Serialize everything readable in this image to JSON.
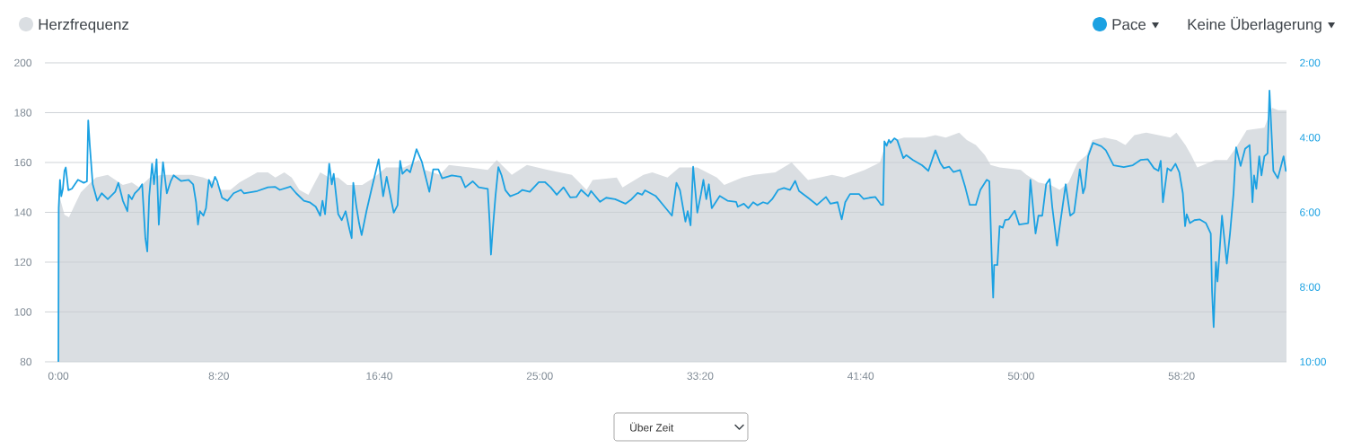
{
  "chart_data": {
    "type": "area",
    "series": [
      {
        "name": "Herzfrequenz",
        "color": "#dadee2",
        "x": [
          0,
          19,
          33,
          51,
          70,
          93,
          117,
          154,
          201,
          229,
          252,
          285,
          322,
          359,
          415,
          452,
          490,
          508,
          536,
          564,
          620,
          653,
          676,
          704,
          727,
          751,
          779,
          816,
          844,
          872,
          900,
          947,
          984,
          1021,
          1077,
          1124,
          1142,
          1189,
          1217,
          1282,
          1338,
          1366,
          1413,
          1460,
          1525,
          1600,
          1646,
          1665,
          1740,
          1758,
          1823,
          1851,
          1898,
          1935,
          1991,
          2052,
          2075,
          2131,
          2168,
          2234,
          2285,
          2336,
          2411,
          2448,
          2513,
          2560,
          2579,
          2635,
          2700,
          2733,
          2765,
          2807,
          2831,
          2859,
          2887,
          2905,
          2933,
          2999,
          3017,
          3054,
          3092,
          3120,
          3148,
          3176,
          3204,
          3222,
          3260,
          3297,
          3325,
          3353,
          3390,
          3428,
          3465,
          3484,
          3512,
          3530,
          3549,
          3605,
          3642,
          3670,
          3703,
          3758,
          3782,
          3801,
          3827
        ],
        "values": [
          148,
          139,
          138,
          143,
          148,
          151,
          154,
          155,
          151,
          152,
          150,
          154,
          155,
          155,
          155,
          154,
          152,
          149,
          149,
          152,
          156,
          156,
          154,
          156,
          154,
          149,
          147,
          156,
          154,
          154,
          151,
          151,
          154,
          158,
          158,
          161,
          157,
          155,
          159,
          158,
          157,
          161,
          155,
          159,
          157,
          155,
          149,
          153,
          154,
          150,
          155,
          156,
          154,
          158,
          158,
          154,
          151,
          154,
          155,
          156,
          160,
          153,
          155,
          154,
          157,
          160,
          168,
          170,
          170,
          171,
          170,
          172,
          169,
          167,
          163,
          159,
          158,
          157,
          155,
          152,
          151,
          149,
          152,
          160,
          163,
          169,
          170,
          169,
          167,
          171,
          172,
          171,
          170,
          172,
          167,
          163,
          158,
          161,
          161,
          166,
          173,
          174,
          182,
          181,
          181
        ]
      },
      {
        "name": "Pace",
        "type": "line",
        "axis": "y2",
        "color": "#1ba1e2",
        "x": [
          0,
          1,
          5,
          9,
          14,
          19,
          23,
          31,
          42,
          61,
          79,
          89,
          93,
          98,
          107,
          121,
          135,
          154,
          177,
          187,
          201,
          215,
          219,
          229,
          238,
          252,
          261,
          271,
          277,
          283,
          292,
          298,
          306,
          313,
          320,
          326,
          338,
          350,
          359,
          382,
          406,
          420,
          429,
          435,
          441,
          452,
          460,
          469,
          478,
          488,
          495,
          510,
          527,
          546,
          569,
          578,
          620,
          653,
          676,
          690,
          723,
          741,
          765,
          783,
          802,
          816,
          823,
          831,
          844,
          852,
          858,
          872,
          883,
          895,
          907,
          914,
          919,
          928,
          937,
          945,
          960,
          975,
          998,
          1012,
          1023,
          1045,
          1057,
          1065,
          1072,
          1086,
          1096,
          1116,
          1133,
          1156,
          1168,
          1184,
          1196,
          1226,
          1254,
          1268,
          1291,
          1310,
          1338,
          1344,
          1348,
          1353,
          1362,
          1371,
          1381,
          1393,
          1408,
          1432,
          1446,
          1469,
          1497,
          1516,
          1534,
          1553,
          1574,
          1595,
          1614,
          1629,
          1651,
          1660,
          1688,
          1707,
          1735,
          1767,
          1786,
          1805,
          1819,
          1828,
          1861,
          1889,
          1912,
          1926,
          1937,
          1954,
          1961,
          1970,
          1978,
          1991,
          2002,
          2010,
          2019,
          2027,
          2036,
          2061,
          2085,
          2112,
          2117,
          2136,
          2150,
          2165,
          2178,
          2196,
          2210,
          2224,
          2243,
          2261,
          2280,
          2296,
          2308,
          2336,
          2364,
          2392,
          2406,
          2428,
          2441,
          2452,
          2467,
          2495,
          2509,
          2527,
          2546,
          2564,
          2570,
          2574,
          2581,
          2588,
          2593,
          2605,
          2614,
          2633,
          2642,
          2663,
          2691,
          2711,
          2733,
          2748,
          2759,
          2776,
          2789,
          2810,
          2826,
          2840,
          2859,
          2873,
          2893,
          2901,
          2910,
          2913,
          2916,
          2926,
          2933,
          2943,
          2950,
          2961,
          2980,
          2994,
          3022,
          3029,
          3045,
          3054,
          3066,
          3078,
          3089,
          3097,
          3112,
          3139,
          3153,
          3165,
          3183,
          3193,
          3199,
          3209,
          3224,
          3250,
          3264,
          3288,
          3320,
          3348,
          3372,
          3395,
          3414,
          3428,
          3435,
          3442,
          3456,
          3467,
          3481,
          3493,
          3504,
          3511,
          3516,
          3526,
          3540,
          3557,
          3576,
          3591,
          3595,
          3600,
          3607,
          3612,
          3626,
          3641,
          3651,
          3662,
          3670,
          3684,
          3698,
          3712,
          3721,
          3726,
          3733,
          3742,
          3749,
          3758,
          3768,
          3774,
          3786,
          3800,
          3818,
          3825
        ],
        "values": [
          10.0,
          5.89,
          5.13,
          5.57,
          5.37,
          4.89,
          4.8,
          5.41,
          5.37,
          5.13,
          5.21,
          5.17,
          3.54,
          4.22,
          5.25,
          5.69,
          5.49,
          5.65,
          5.45,
          5.21,
          5.69,
          5.97,
          5.53,
          5.65,
          5.49,
          5.37,
          5.25,
          6.69,
          7.05,
          5.57,
          4.7,
          5.25,
          4.58,
          6.33,
          5.33,
          4.66,
          5.49,
          5.17,
          5.01,
          5.16,
          5.13,
          5.25,
          5.73,
          6.33,
          5.97,
          6.09,
          5.89,
          5.13,
          5.33,
          5.05,
          5.17,
          5.61,
          5.69,
          5.49,
          5.4,
          5.49,
          5.43,
          5.33,
          5.32,
          5.4,
          5.31,
          5.49,
          5.69,
          5.73,
          5.85,
          6.09,
          5.69,
          6.05,
          4.7,
          5.25,
          4.97,
          6.05,
          6.21,
          5.97,
          6.45,
          6.69,
          5.21,
          5.81,
          6.29,
          6.61,
          5.97,
          5.41,
          4.58,
          5.57,
          5.05,
          6.01,
          5.81,
          4.62,
          4.97,
          4.85,
          4.93,
          4.31,
          4.66,
          5.45,
          4.85,
          4.85,
          5.09,
          5.01,
          5.05,
          5.33,
          5.17,
          5.33,
          5.37,
          6.29,
          7.13,
          6.53,
          5.57,
          4.79,
          5.01,
          5.41,
          5.57,
          5.49,
          5.4,
          5.45,
          5.19,
          5.19,
          5.33,
          5.53,
          5.33,
          5.6,
          5.59,
          5.4,
          5.57,
          5.43,
          5.72,
          5.61,
          5.65,
          5.77,
          5.65,
          5.48,
          5.53,
          5.41,
          5.56,
          5.85,
          6.09,
          5.21,
          5.41,
          6.25,
          5.97,
          6.35,
          4.78,
          6.01,
          5.53,
          5.13,
          5.65,
          5.25,
          5.89,
          5.56,
          5.69,
          5.72,
          5.85,
          5.77,
          5.89,
          5.73,
          5.81,
          5.73,
          5.77,
          5.65,
          5.4,
          5.35,
          5.4,
          5.16,
          5.43,
          5.61,
          5.8,
          5.59,
          5.77,
          5.73,
          6.19,
          5.73,
          5.51,
          5.51,
          5.64,
          5.61,
          5.59,
          5.8,
          5.8,
          4.1,
          4.22,
          4.06,
          4.14,
          4.02,
          4.07,
          4.55,
          4.47,
          4.6,
          4.74,
          4.89,
          4.34,
          4.68,
          4.82,
          4.78,
          4.92,
          4.87,
          5.33,
          5.8,
          5.8,
          5.4,
          5.13,
          5.17,
          7.65,
          8.28,
          7.41,
          7.41,
          6.37,
          6.41,
          6.21,
          6.19,
          5.96,
          6.33,
          6.29,
          5.13,
          6.57,
          6.09,
          6.09,
          5.25,
          5.11,
          5.85,
          6.89,
          5.25,
          6.09,
          6.01,
          4.85,
          5.49,
          5.33,
          4.5,
          4.14,
          4.23,
          4.34,
          4.74,
          4.79,
          4.74,
          4.6,
          4.58,
          4.82,
          4.89,
          4.62,
          5.73,
          4.82,
          4.89,
          4.7,
          4.93,
          5.49,
          6.37,
          6.05,
          6.29,
          6.21,
          6.19,
          6.29,
          6.57,
          8.12,
          9.07,
          7.33,
          7.85,
          6.09,
          7.37,
          6.57,
          5.49,
          4.26,
          4.76,
          4.3,
          4.2,
          5.73,
          5.01,
          5.37,
          4.5,
          5.01,
          4.5,
          4.42,
          2.74,
          4.89,
          5.09,
          4.5,
          4.89
        ]
      }
    ],
    "xlim": [
      -42,
      3827
    ],
    "xticks": [
      {
        "value": 0,
        "label": "0:00"
      },
      {
        "value": 500,
        "label": "8:20"
      },
      {
        "value": 1000,
        "label": "16:40"
      },
      {
        "value": 1500,
        "label": "25:00"
      },
      {
        "value": 2000,
        "label": "33:20"
      },
      {
        "value": 2500,
        "label": "41:40"
      },
      {
        "value": 3000,
        "label": "50:00"
      },
      {
        "value": 3500,
        "label": "58:20"
      }
    ],
    "ylim": [
      80,
      200
    ],
    "yticks": [
      80,
      100,
      120,
      140,
      160,
      180,
      200
    ],
    "y2lim": [
      10,
      2
    ],
    "y2ticks": [
      {
        "value": 2,
        "label": "2:00"
      },
      {
        "value": 4,
        "label": "4:00"
      },
      {
        "value": 6,
        "label": "6:00"
      },
      {
        "value": 8,
        "label": "8:00"
      },
      {
        "value": 10,
        "label": "10:00"
      }
    ],
    "grid": "y",
    "legend": "top",
    "annotations": [
      "Keine Überlagerung",
      "Über Zeit"
    ]
  }
}
